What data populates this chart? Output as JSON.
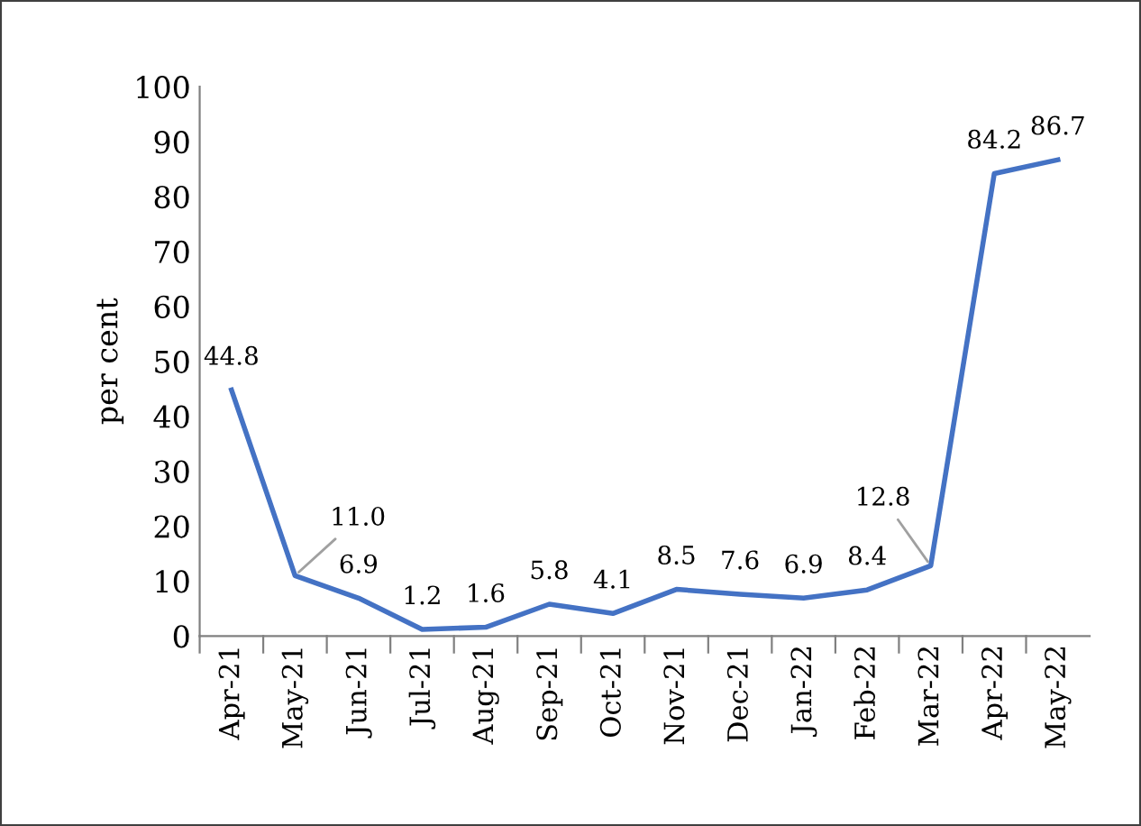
{
  "chart_data": {
    "type": "line",
    "ylabel": "per cent",
    "categories": [
      "Apr-21",
      "May-21",
      "Jun-21",
      "Jul-21",
      "Aug-21",
      "Sep-21",
      "Oct-21",
      "Nov-21",
      "Dec-21",
      "Jan-22",
      "Feb-22",
      "Mar-22",
      "Apr-22",
      "May-22"
    ],
    "series": [
      {
        "color": "#4472c4",
        "values": [
          44.8,
          11.0,
          6.9,
          1.2,
          1.6,
          5.8,
          4.1,
          8.5,
          7.6,
          6.9,
          8.4,
          12.8,
          84.2,
          86.7
        ],
        "value_labels": [
          "44.8",
          "11.0",
          "6.9",
          "1.2",
          "1.6",
          "5.8",
          "4.1",
          "8.5",
          "7.6",
          "6.9",
          "8.4",
          "12.8",
          "84.2",
          "86.7"
        ]
      }
    ],
    "ylim": [
      0,
      100
    ],
    "yticks": [
      0,
      10,
      20,
      30,
      40,
      50,
      60,
      70,
      80,
      90,
      100
    ],
    "grid": false,
    "legend": false,
    "marker": "none",
    "line_style": "solid"
  }
}
